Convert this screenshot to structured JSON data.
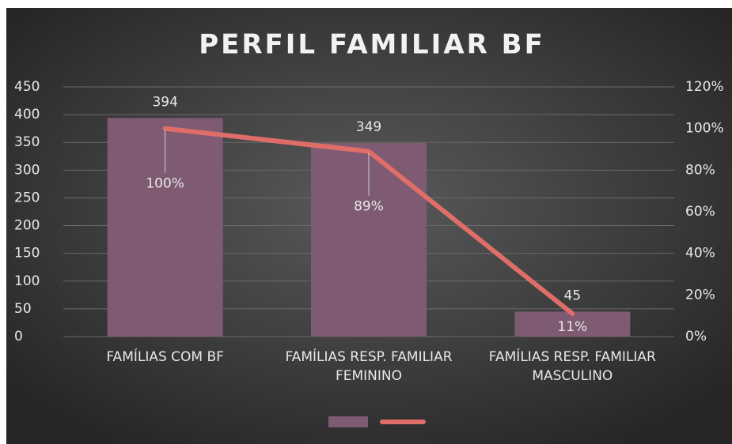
{
  "chart_data": {
    "type": "bar_line",
    "title": "PERFIL FAMILIAR BF",
    "categories": [
      "FAMÍLIAS COM BF",
      "FAMÍLIAS RESP. FAMILIAR FEMININO",
      "FAMÍLIAS RESP. FAMILIAR MASCULINO"
    ],
    "series": [
      {
        "type": "bar",
        "color": "#7e5a73",
        "values": [
          394,
          349,
          45
        ]
      },
      {
        "type": "line",
        "axis": "y2",
        "color": "#e06e68",
        "values": [
          100,
          89,
          11
        ],
        "value_labels": [
          "100%",
          "89%",
          "11%"
        ]
      }
    ],
    "ylim": [
      0,
      450
    ],
    "yticks": [
      0,
      50,
      100,
      150,
      200,
      250,
      300,
      350,
      400,
      450
    ],
    "y2lim": [
      0,
      120
    ],
    "y2ticks": [
      {
        "value": 0,
        "label": "0%"
      },
      {
        "value": 20,
        "label": "20%"
      },
      {
        "value": 40,
        "label": "40%"
      },
      {
        "value": 60,
        "label": "60%"
      },
      {
        "value": 80,
        "label": "80%"
      },
      {
        "value": 100,
        "label": "100%"
      },
      {
        "value": 120,
        "label": "120%"
      }
    ],
    "grid": true,
    "legend": "bottom"
  }
}
